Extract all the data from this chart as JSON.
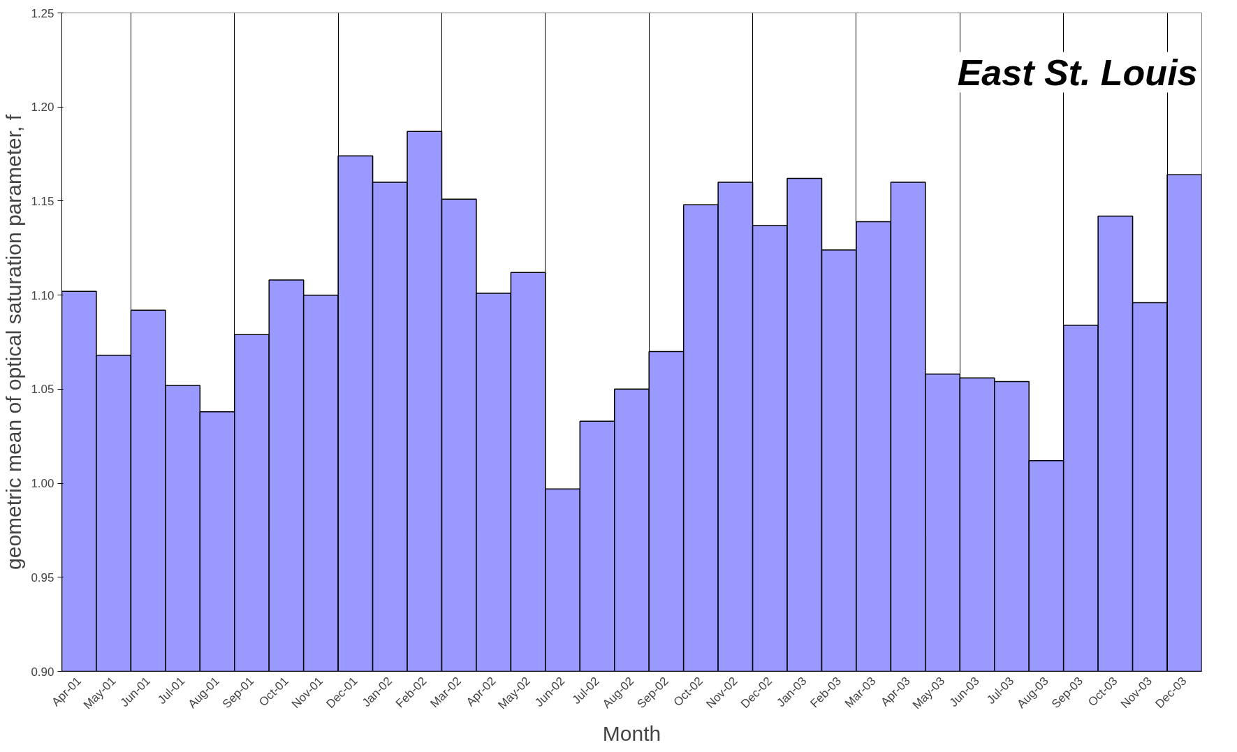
{
  "chart_data": {
    "type": "bar",
    "title": "East St. Louis",
    "xlabel": "Month",
    "ylabel": "geometric mean of optical saturation parameter, f",
    "categories": [
      "Apr-01",
      "May-01",
      "Jun-01",
      "Jul-01",
      "Aug-01",
      "Sep-01",
      "Oct-01",
      "Nov-01",
      "Dec-01",
      "Jan-02",
      "Feb-02",
      "Mar-02",
      "Apr-02",
      "May-02",
      "Jun-02",
      "Jul-02",
      "Aug-02",
      "Sep-02",
      "Oct-02",
      "Nov-02",
      "Dec-02",
      "Jan-03",
      "Feb-03",
      "Mar-03",
      "Apr-03",
      "May-03",
      "Jun-03",
      "Jul-03",
      "Aug-03",
      "Sep-03",
      "Oct-03",
      "Nov-03",
      "Dec-03"
    ],
    "values": [
      1.102,
      1.068,
      1.092,
      1.052,
      1.038,
      1.079,
      1.108,
      1.1,
      1.174,
      1.16,
      1.187,
      1.151,
      1.101,
      1.112,
      0.997,
      1.033,
      1.05,
      1.07,
      1.148,
      1.16,
      1.137,
      1.162,
      1.124,
      1.139,
      1.16,
      1.058,
      1.056,
      1.054,
      1.012,
      1.084,
      1.142,
      1.096,
      1.164
    ],
    "color": "#9999ff",
    "ylim": [
      0.9,
      1.25
    ],
    "yticks": [
      {
        "value": 0.9,
        "label": "0.90"
      },
      {
        "value": 0.95,
        "label": "0.95"
      },
      {
        "value": 1.0,
        "label": "1.00"
      },
      {
        "value": 1.05,
        "label": "1.05"
      },
      {
        "value": 1.1,
        "label": "1.10"
      },
      {
        "value": 1.15,
        "label": "1.15"
      },
      {
        "value": 1.2,
        "label": "1.20"
      },
      {
        "value": 1.25,
        "label": "1.25"
      }
    ],
    "grid": "x"
  }
}
